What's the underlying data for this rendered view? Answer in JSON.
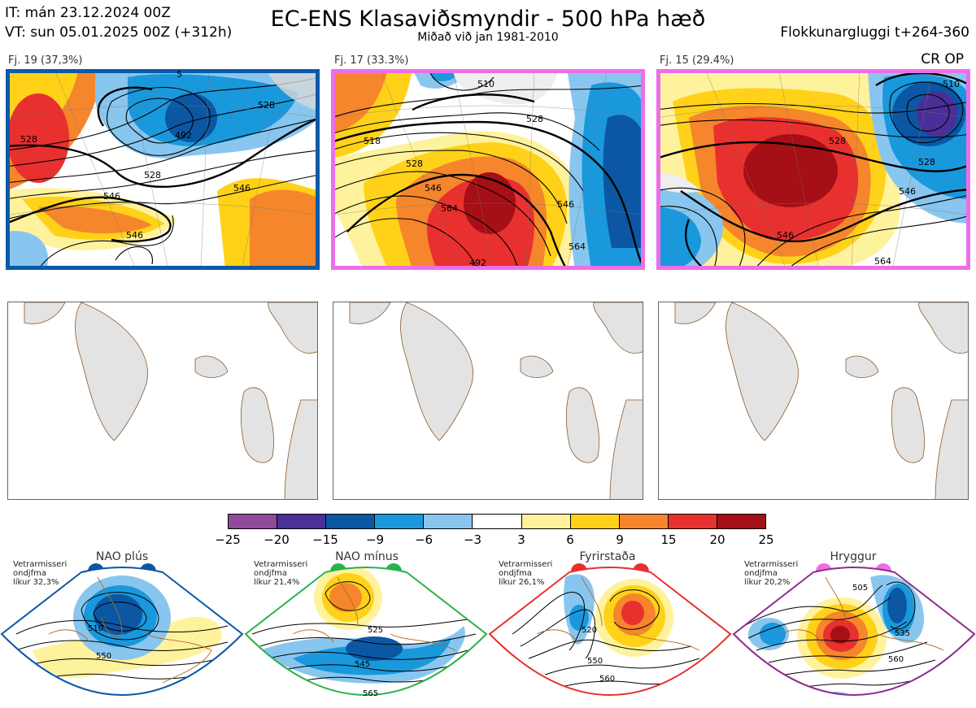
{
  "header": {
    "it": "IT: mán 23.12.2024 00Z",
    "vt": "VT: sun 05.01.2025 00Z  (+312h)",
    "title": "EC-ENS Klasaviðsmyndir - 500 hPa hæð",
    "subtitle": "Miðað við jan 1981-2010",
    "window": "Flokkunargluggi t+264-360",
    "crop": "CR OP"
  },
  "clusters": [
    {
      "label": "Fj. 19 (37,3%)",
      "frame_color": "#0b5aa8",
      "contours": [
        "528",
        "546",
        "546",
        "528",
        "492",
        "528",
        "546",
        "5"
      ]
    },
    {
      "label": "Fj. 17 (33.3%)",
      "frame_color": "#ee6ee8",
      "contours": [
        "510",
        "528",
        "528",
        "546",
        "564",
        "546",
        "564",
        "492",
        "518"
      ]
    },
    {
      "label": "Fj. 15 (29.4%)",
      "frame_color": "#ee6ee8",
      "contours": [
        "528",
        "546",
        "546",
        "528",
        "510",
        "564"
      ]
    }
  ],
  "colorbar": {
    "colors": [
      "#8f4a9a",
      "#4b2f99",
      "#0b57a4",
      "#1a98dc",
      "#88c6ef",
      "#ffffff",
      "#fff29c",
      "#ffd219",
      "#f5862b",
      "#e8302e",
      "#a50f15"
    ],
    "ticks": [
      "−25",
      "−20",
      "−15",
      "−9",
      "−6",
      "−3",
      "3",
      "6",
      "9",
      "15",
      "20",
      "25"
    ]
  },
  "regimes": [
    {
      "name": "NAO plús",
      "stat1": "Vetrarmisseri",
      "stat2": "ondjfma",
      "stat3": "líkur 32,3%",
      "color": "#0b57a4",
      "border": "#0b57a4",
      "contours": [
        "510",
        "550"
      ]
    },
    {
      "name": "NAO mínus",
      "stat1": "Vetrarmisseri",
      "stat2": "ondjfma",
      "stat3": "líkur 21,4%",
      "color": "#2ab24a",
      "border": "#2ab24a",
      "contours": [
        "525",
        "545",
        "565"
      ]
    },
    {
      "name": "Fyrirstaða",
      "stat1": "Vetrarmisseri",
      "stat2": "ondjfma",
      "stat3": "líkur 26,1%",
      "color": "#e8302e",
      "border": "#e8302e",
      "contours": [
        "520",
        "550",
        "560"
      ]
    },
    {
      "name": "Hryggur",
      "stat1": "Vetrarmisseri",
      "stat2": "ondjfma",
      "stat3": "líkur 20,2%",
      "color": "#ee6ee8",
      "border": "#8e2c8e",
      "contours": [
        "505",
        "535",
        "560"
      ]
    }
  ]
}
